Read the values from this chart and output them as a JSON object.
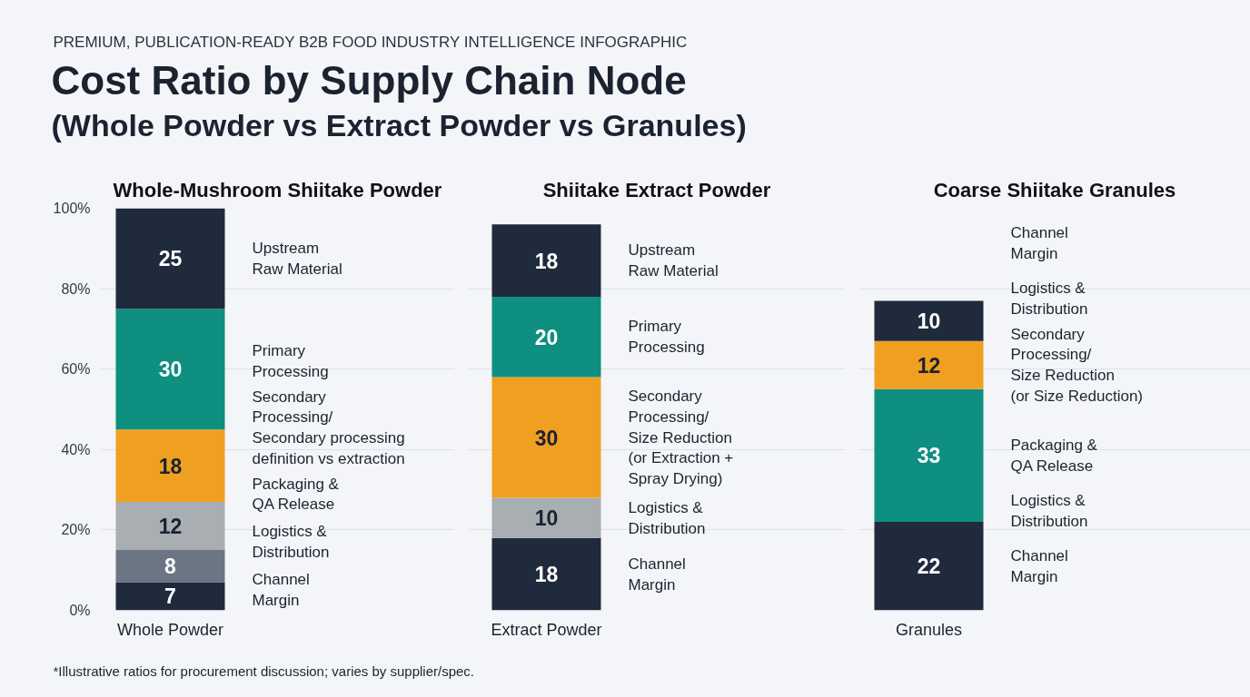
{
  "chart_data": [
    {
      "type": "other",
      "subtitle": "PREMIUM, PUBLICATION-READY B2B FOOD INDUSTRY INTELLIGENCE INFOGRAPHIC",
      "title": "Cost Ratio by Supply Chain Node\n(Whole Powder vs Extract Powder vs Granules)",
      "annotations": [
        "*Illustrative ratios for procurement discussion; varies by supplier/spec."
      ]
    },
    {
      "type": "bar",
      "stacked": true,
      "title": "Whole-Mushroom Shiitake Powder",
      "categories": [
        "Whole Powder"
      ],
      "ylim": [
        0,
        100
      ],
      "yticks": [
        {
          "value": 0,
          "label": "0%"
        },
        {
          "value": 20,
          "label": "20%"
        },
        {
          "value": 40,
          "label": "40%"
        },
        {
          "value": 60,
          "label": "60%"
        },
        {
          "value": 80,
          "label": "80%"
        },
        {
          "value": 100,
          "label": "100%"
        }
      ],
      "grid": "y",
      "data_labels": true,
      "series": [
        {
          "name": "Channel\nMargin",
          "color": "#1f2a3c",
          "values": [
            7
          ]
        },
        {
          "name": "Logistics &\nDistribution",
          "color": "#6b7583",
          "values": [
            8
          ]
        },
        {
          "name": "Packaging &\nQA Release",
          "color": "#a9aeb3",
          "values": [
            12
          ]
        },
        {
          "name": "Secondary\nProcessing/\nSecondary processing\ndefinition vs extraction",
          "color": "#f0a020",
          "values": [
            18
          ]
        },
        {
          "name": "Primary\nProcessing",
          "color": "#0f8f80",
          "values": [
            30
          ]
        },
        {
          "name": "Upstream\nRaw Material",
          "color": "#1f2a3c",
          "values": [
            25
          ]
        }
      ]
    },
    {
      "type": "bar",
      "stacked": true,
      "title": "Shiitake Extract Powder",
      "categories": [
        "Extract Powder"
      ],
      "ylim": [
        0,
        100
      ],
      "yticks": [
        {
          "value": 0,
          "label": null
        },
        {
          "value": 20,
          "label": null
        },
        {
          "value": 40,
          "label": null
        },
        {
          "value": 60,
          "label": null
        },
        {
          "value": 80,
          "label": null
        },
        {
          "value": 100,
          "label": null
        }
      ],
      "grid": "y",
      "data_labels": true,
      "tick_labels": "x",
      "series": [
        {
          "name": "Channel\nMargin",
          "color": "#1f2a3c",
          "values": [
            18
          ]
        },
        {
          "name": "Logistics &\nDistribution",
          "color": "#a9aeb3",
          "values": [
            10
          ]
        },
        {
          "name": "Secondary\nProcessing/\nSize Reduction\n(or Extraction +\nSpray Drying)",
          "color": "#f0a020",
          "values": [
            30
          ]
        },
        {
          "name": "Primary\nProcessing",
          "color": "#0f8f80",
          "values": [
            20
          ]
        },
        {
          "name": "Upstream\nRaw Material",
          "color": "#1f2a3c",
          "values": [
            18
          ]
        }
      ]
    },
    {
      "type": "bar",
      "stacked": true,
      "title": "Coarse Shiitake Granules",
      "categories": [
        "Granules"
      ],
      "ylim": [
        0,
        100
      ],
      "yticks": [
        {
          "value": 0,
          "label": null
        },
        {
          "value": 20,
          "label": null
        },
        {
          "value": 40,
          "label": null
        },
        {
          "value": 60,
          "label": null
        },
        {
          "value": 80,
          "label": null
        },
        {
          "value": 100,
          "label": null
        }
      ],
      "grid": "y",
      "data_labels": true,
      "tick_labels": "x",
      "series": [
        {
          "name": "Channel\nMargin",
          "color": "#1f2a3c",
          "values": [
            22
          ]
        },
        {
          "name": "Packaging &\nQA Release",
          "color": "#0f8f80",
          "values": [
            33
          ]
        },
        {
          "name": "Secondary\nProcessing/\nSize Reduction\n(or Size Reduction)",
          "color": "#f0a020",
          "values": [
            12
          ]
        },
        {
          "name": "Logistics &\nDistribution",
          "color": "#1f2a3c",
          "values": [
            10
          ]
        }
      ],
      "annotations": [
        "Channel\nMargin",
        "Logistics &\nDistribution"
      ]
    }
  ]
}
